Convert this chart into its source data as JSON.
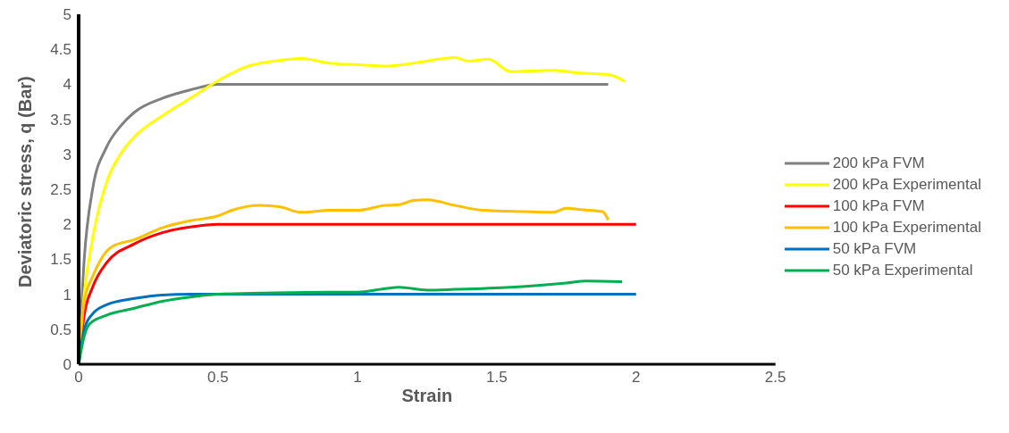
{
  "chart_data": {
    "type": "line",
    "xlabel": "Strain",
    "ylabel": "Deviatoric stress, q (Bar)",
    "xlim": [
      0,
      2.5
    ],
    "xticks": [
      0,
      0.5,
      1,
      1.5,
      2,
      2.5
    ],
    "ylim": [
      0,
      5
    ],
    "yticks": [
      0,
      0.5,
      1,
      1.5,
      2,
      2.5,
      3,
      3.5,
      4,
      4.5,
      5
    ],
    "grid": false,
    "legend": "right",
    "marker": "none",
    "line_style": "solid",
    "series": [
      {
        "name": "200 kPa FVM",
        "color": "#808080",
        "x": [
          0,
          0.02,
          0.05,
          0.1,
          0.15,
          0.2,
          0.3,
          0.4,
          0.5,
          1.9
        ],
        "values": [
          0,
          1.5,
          2.5,
          3.1,
          3.4,
          3.6,
          3.8,
          3.92,
          4,
          4
        ]
      },
      {
        "name": "200 kPa Experimental",
        "color": "#ffff00",
        "x": [
          0,
          0.02,
          0.05,
          0.1,
          0.15,
          0.2,
          0.3,
          0.4,
          0.5,
          0.6,
          0.7,
          0.8,
          0.9,
          1.0,
          1.1,
          1.2,
          1.35,
          1.4,
          1.47,
          1.55,
          1.7,
          1.8,
          1.9,
          1.96
        ],
        "values": [
          0,
          1.0,
          1.8,
          2.6,
          3.0,
          3.25,
          3.55,
          3.8,
          4.05,
          4.25,
          4.33,
          4.37,
          4.3,
          4.28,
          4.26,
          4.3,
          4.38,
          4.33,
          4.36,
          4.18,
          4.2,
          4.16,
          4.14,
          4.04
        ]
      },
      {
        "name": "100 kPa FVM",
        "color": "#ff0000",
        "x": [
          0,
          0.02,
          0.05,
          0.1,
          0.2,
          0.3,
          0.4,
          0.5,
          2.0
        ],
        "values": [
          0,
          0.7,
          1.1,
          1.45,
          1.72,
          1.88,
          1.96,
          2,
          2
        ]
      },
      {
        "name": "100 kPa Experimental",
        "color": "#ffc000",
        "x": [
          0,
          0.02,
          0.05,
          0.08,
          0.12,
          0.2,
          0.3,
          0.4,
          0.5,
          0.55,
          0.65,
          0.72,
          0.8,
          0.9,
          1.0,
          1.1,
          1.15,
          1.2,
          1.25,
          1.35,
          1.45,
          1.6,
          1.7,
          1.75,
          1.8,
          1.88,
          1.9
        ],
        "values": [
          0,
          0.9,
          1.25,
          1.5,
          1.68,
          1.78,
          1.95,
          2.05,
          2.12,
          2.2,
          2.27,
          2.25,
          2.17,
          2.2,
          2.2,
          2.27,
          2.28,
          2.34,
          2.35,
          2.27,
          2.2,
          2.18,
          2.17,
          2.23,
          2.21,
          2.18,
          2.06
        ]
      },
      {
        "name": "50 kPa FVM",
        "color": "#0070c0",
        "x": [
          0,
          0.02,
          0.05,
          0.1,
          0.2,
          0.3,
          0.4,
          2.0
        ],
        "values": [
          0,
          0.5,
          0.72,
          0.85,
          0.94,
          0.99,
          1.0,
          1.0
        ]
      },
      {
        "name": "50 kPa Experimental",
        "color": "#00b050",
        "x": [
          0,
          0.02,
          0.04,
          0.1,
          0.2,
          0.3,
          0.4,
          0.5,
          0.7,
          0.9,
          1.0,
          1.1,
          1.15,
          1.25,
          1.35,
          1.55,
          1.75,
          1.82,
          1.95
        ],
        "values": [
          0,
          0.4,
          0.58,
          0.7,
          0.8,
          0.9,
          0.96,
          1.0,
          1.02,
          1.03,
          1.03,
          1.08,
          1.1,
          1.06,
          1.07,
          1.1,
          1.16,
          1.19,
          1.18
        ]
      }
    ]
  }
}
